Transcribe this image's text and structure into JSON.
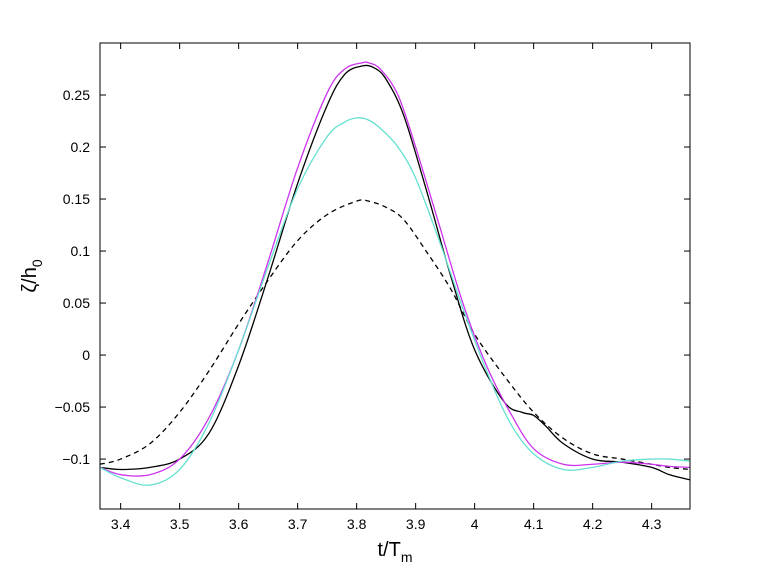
{
  "chart_data": {
    "type": "line",
    "title": "",
    "xlabel": {
      "main": "t/T",
      "sub": "m"
    },
    "ylabel": {
      "main": "ζ/h",
      "sub": "0"
    },
    "xlim": [
      3.365,
      4.365
    ],
    "ylim": [
      -0.148,
      0.3
    ],
    "xticks": [
      3.4,
      3.5,
      3.6,
      3.7,
      3.8,
      3.9,
      4.0,
      4.1,
      4.2,
      4.3
    ],
    "xtick_labels": [
      "3.4",
      "3.5",
      "3.6",
      "3.7",
      "3.8",
      "3.9",
      "4",
      "4.1",
      "4.2",
      "4.3"
    ],
    "yticks": [
      -0.1,
      -0.05,
      0,
      0.05,
      0.1,
      0.15,
      0.2,
      0.25
    ],
    "ytick_labels": [
      "−0.1",
      "−0.05",
      "0",
      "0.05",
      "0.1",
      "0.15",
      "0.2",
      "0.25"
    ],
    "grid": false,
    "legend": "none",
    "series": [
      {
        "color": "#000000",
        "dash": "5,4",
        "x": [
          3.365,
          3.4,
          3.45,
          3.5,
          3.55,
          3.6,
          3.65,
          3.7,
          3.75,
          3.8,
          3.82,
          3.85,
          3.88,
          3.92,
          3.96,
          4.0,
          4.05,
          4.1,
          4.15,
          4.2,
          4.25,
          4.3,
          4.33,
          4.365
        ],
        "y": [
          -0.105,
          -0.1,
          -0.085,
          -0.055,
          -0.015,
          0.03,
          0.072,
          0.11,
          0.135,
          0.148,
          0.148,
          0.142,
          0.13,
          0.098,
          0.063,
          0.02,
          -0.02,
          -0.055,
          -0.08,
          -0.095,
          -0.1,
          -0.105,
          -0.108,
          -0.11
        ]
      },
      {
        "color": "#000000",
        "dash": "",
        "x": [
          3.365,
          3.4,
          3.45,
          3.5,
          3.55,
          3.6,
          3.65,
          3.7,
          3.75,
          3.78,
          3.81,
          3.83,
          3.85,
          3.88,
          3.92,
          3.96,
          4.0,
          4.05,
          4.08,
          4.1,
          4.12,
          4.15,
          4.2,
          4.25,
          4.3,
          4.33,
          4.365
        ],
        "y": [
          -0.108,
          -0.11,
          -0.108,
          -0.1,
          -0.075,
          -0.01,
          0.075,
          0.165,
          0.24,
          0.27,
          0.278,
          0.276,
          0.265,
          0.23,
          0.155,
          0.075,
          0.005,
          -0.045,
          -0.055,
          -0.058,
          -0.068,
          -0.085,
          -0.1,
          -0.103,
          -0.108,
          -0.115,
          -0.12
        ]
      },
      {
        "color": "#cc33ee",
        "dash": "",
        "x": [
          3.365,
          3.4,
          3.45,
          3.5,
          3.55,
          3.6,
          3.65,
          3.7,
          3.75,
          3.78,
          3.81,
          3.82,
          3.84,
          3.87,
          3.9,
          3.94,
          3.98,
          4.02,
          4.06,
          4.1,
          4.15,
          4.2,
          4.25,
          4.3,
          4.33,
          4.365
        ],
        "y": [
          -0.108,
          -0.115,
          -0.115,
          -0.1,
          -0.06,
          0.005,
          0.09,
          0.18,
          0.252,
          0.275,
          0.281,
          0.281,
          0.275,
          0.25,
          0.2,
          0.125,
          0.05,
          -0.01,
          -0.055,
          -0.09,
          -0.105,
          -0.105,
          -0.103,
          -0.105,
          -0.107,
          -0.108
        ]
      },
      {
        "color": "#66e0d0",
        "dash": "",
        "x": [
          3.365,
          3.4,
          3.45,
          3.5,
          3.55,
          3.6,
          3.65,
          3.7,
          3.75,
          3.78,
          3.8,
          3.82,
          3.84,
          3.87,
          3.9,
          3.94,
          3.98,
          4.02,
          4.06,
          4.1,
          4.15,
          4.2,
          4.25,
          4.3,
          4.33,
          4.365
        ],
        "y": [
          -0.108,
          -0.118,
          -0.125,
          -0.11,
          -0.065,
          0.005,
          0.085,
          0.16,
          0.21,
          0.224,
          0.228,
          0.226,
          0.218,
          0.2,
          0.17,
          0.11,
          0.045,
          -0.015,
          -0.065,
          -0.095,
          -0.11,
          -0.108,
          -0.102,
          -0.1,
          -0.1,
          -0.102
        ]
      }
    ]
  }
}
